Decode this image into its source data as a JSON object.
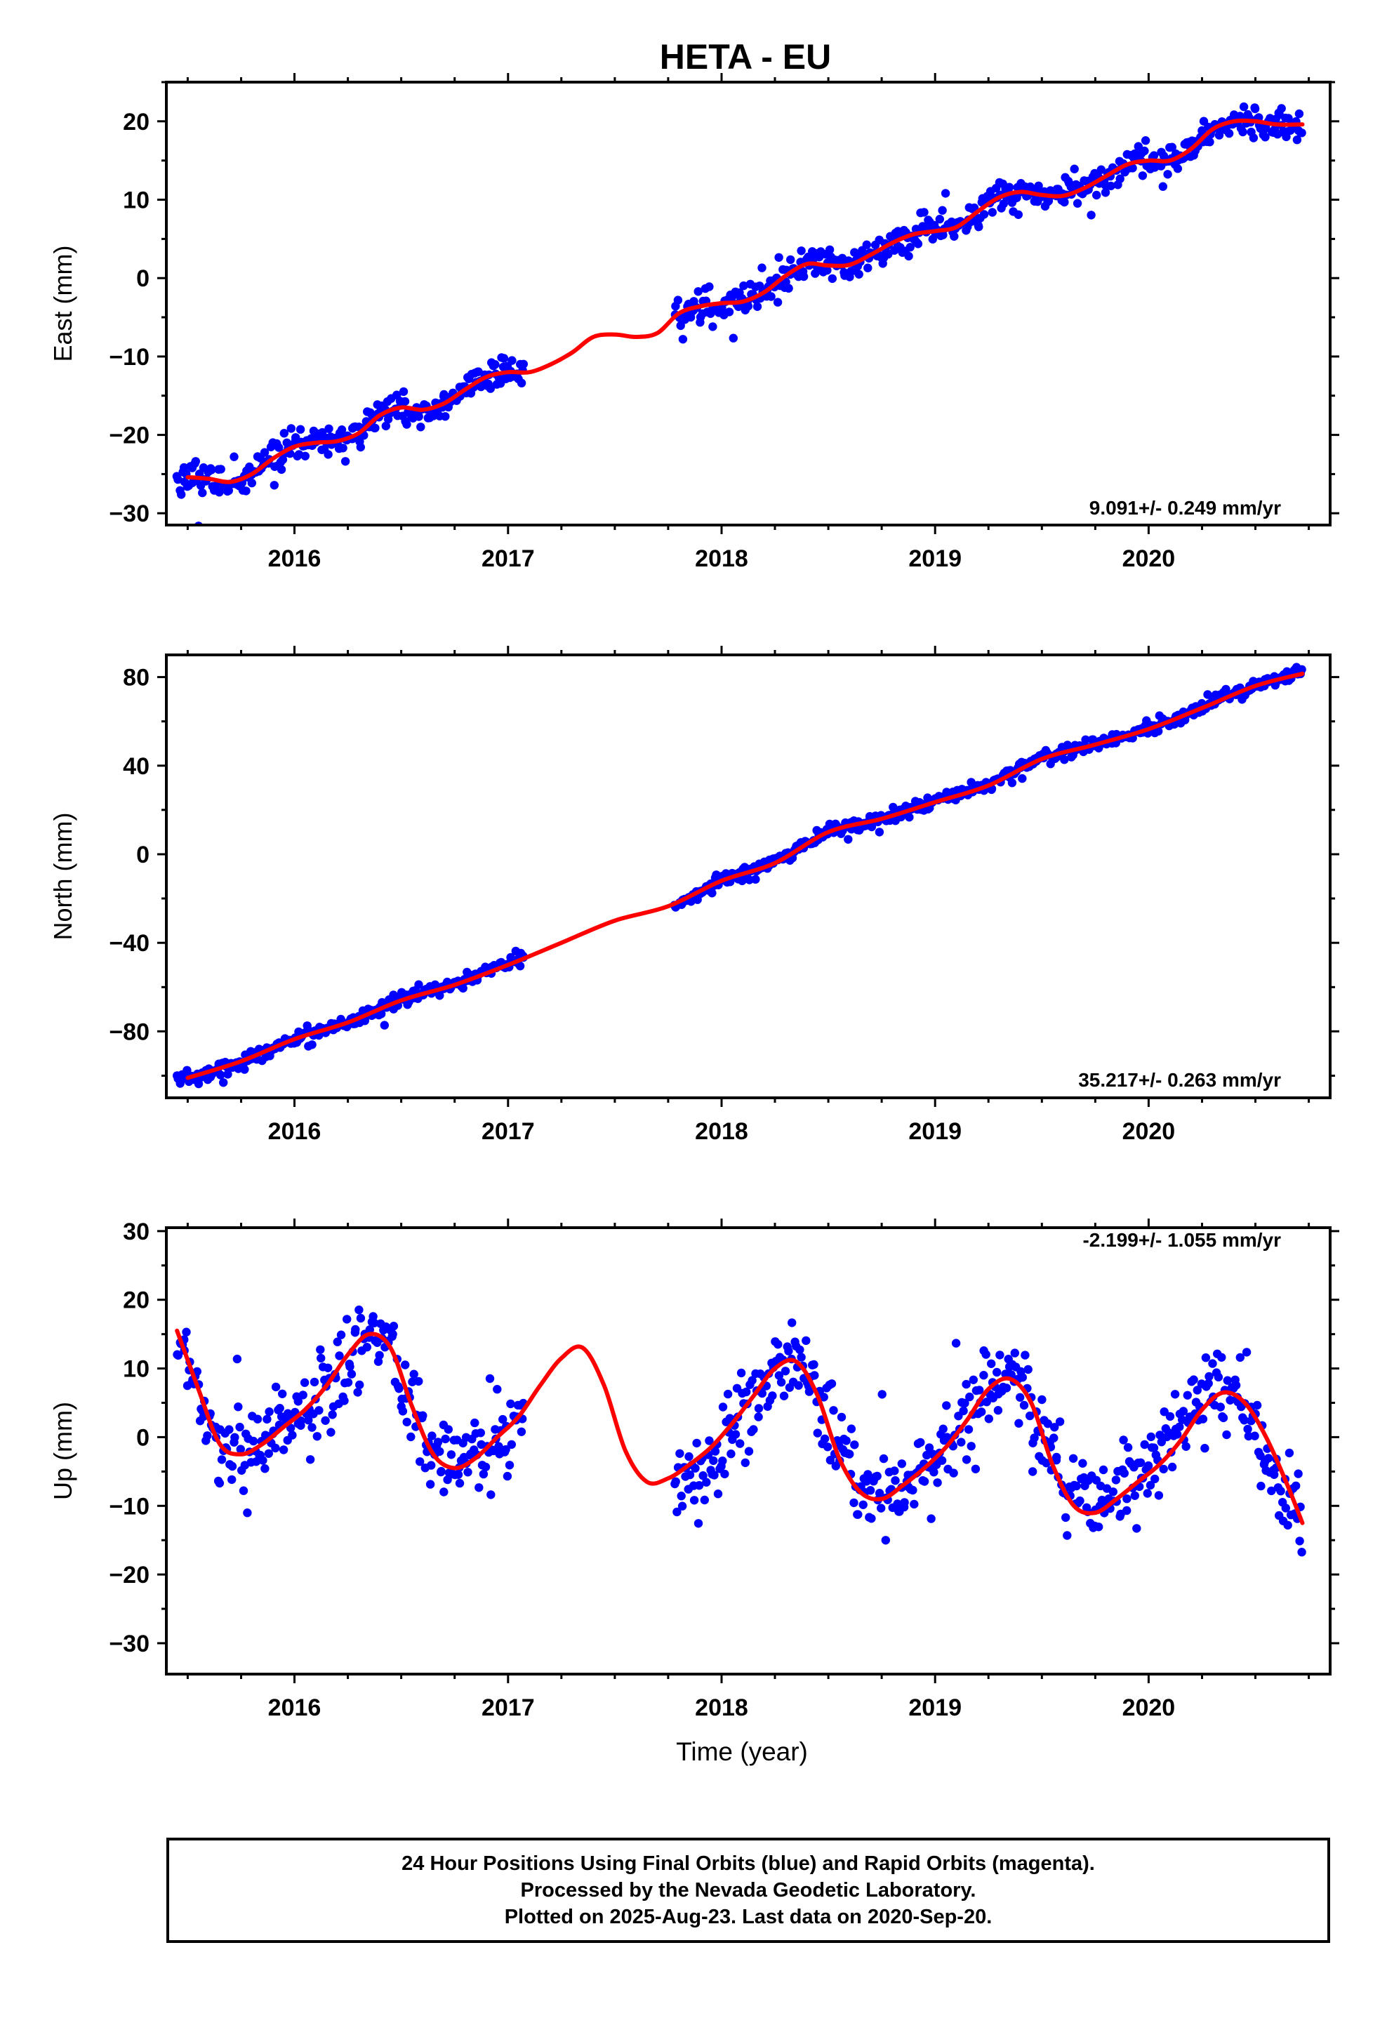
{
  "title": "HETA - EU",
  "colors": {
    "final_orbits": "#0000ff",
    "fit_curve": "#ff0000",
    "frame": "#000000"
  },
  "chart_data": [
    {
      "type": "scatter",
      "ylabel": "East (mm)",
      "xlabel": "",
      "rate_label": "9.091+/- 0.249 mm/yr",
      "xlim": [
        2015.4,
        2020.85
      ],
      "ylim": [
        -31.5,
        25
      ],
      "x_ticks": [
        2016,
        2017,
        2018,
        2019,
        2020
      ],
      "x_tick_labels": [
        "2016",
        "2017",
        "2018",
        "2019",
        "2020"
      ],
      "y_ticks": [
        20,
        10,
        0,
        -10,
        -20,
        -30
      ],
      "y_tick_labels": [
        "20",
        "10",
        "0",
        "−10",
        "−20",
        "−30"
      ],
      "grid": false,
      "data_gap": [
        2017.08,
        2017.78
      ],
      "series": [
        {
          "kind": "points",
          "color": "#0000ff",
          "segments": [
            [
              2015.45,
              2017.08
            ],
            [
              2017.78,
              2020.72
            ]
          ],
          "x": [
            2015.5,
            2015.6,
            2015.7,
            2015.8,
            2015.9,
            2016.0,
            2016.1,
            2016.2,
            2016.3,
            2016.4,
            2016.5,
            2016.6,
            2016.7,
            2016.8,
            2016.9,
            2017.0,
            2017.08,
            2017.8,
            2017.9,
            2018.0,
            2018.1,
            2018.2,
            2018.3,
            2018.4,
            2018.5,
            2018.6,
            2018.7,
            2018.8,
            2018.9,
            2019.0,
            2019.1,
            2019.2,
            2019.3,
            2019.4,
            2019.5,
            2019.6,
            2019.7,
            2019.8,
            2019.9,
            2020.0,
            2020.1,
            2020.2,
            2020.3,
            2020.4,
            2020.5,
            2020.6,
            2020.72
          ],
          "y": [
            -25.5,
            -25.8,
            -26.5,
            -25.0,
            -23.0,
            -21.5,
            -20.8,
            -21.0,
            -19.8,
            -17.5,
            -16.5,
            -17.0,
            -16.0,
            -14.0,
            -12.5,
            -12.0,
            -11.8,
            -4.5,
            -3.5,
            -3.2,
            -3.0,
            -1.5,
            0.5,
            2.0,
            1.5,
            1.5,
            3.0,
            4.5,
            5.5,
            6.0,
            6.5,
            8.5,
            10.5,
            11.0,
            10.5,
            10.5,
            11.5,
            13.0,
            14.5,
            15.0,
            15.0,
            16.5,
            19.0,
            20.0,
            20.0,
            19.5,
            19.5
          ],
          "spread": 1.8
        },
        {
          "kind": "fit",
          "color": "#ff0000",
          "x": [
            2015.5,
            2015.6,
            2015.7,
            2015.8,
            2015.9,
            2016.0,
            2016.1,
            2016.2,
            2016.3,
            2016.4,
            2016.5,
            2016.6,
            2016.7,
            2016.8,
            2016.9,
            2017.0,
            2017.1,
            2017.2,
            2017.3,
            2017.4,
            2017.5,
            2017.6,
            2017.7,
            2017.8,
            2017.9,
            2018.0,
            2018.1,
            2018.2,
            2018.3,
            2018.4,
            2018.5,
            2018.6,
            2018.7,
            2018.8,
            2018.9,
            2019.0,
            2019.1,
            2019.2,
            2019.3,
            2019.4,
            2019.5,
            2019.6,
            2019.7,
            2019.8,
            2019.9,
            2020.0,
            2020.1,
            2020.2,
            2020.3,
            2020.4,
            2020.5,
            2020.6,
            2020.72
          ],
          "y": [
            -25.4,
            -25.6,
            -26.0,
            -25.0,
            -23.0,
            -21.5,
            -21.0,
            -20.8,
            -19.8,
            -17.5,
            -16.5,
            -16.8,
            -16.0,
            -14.2,
            -12.6,
            -12.0,
            -12.0,
            -11.0,
            -9.5,
            -7.5,
            -7.2,
            -7.5,
            -7.0,
            -4.5,
            -3.6,
            -3.2,
            -3.0,
            -1.8,
            0.3,
            1.8,
            1.6,
            1.7,
            3.0,
            4.5,
            5.6,
            6.0,
            6.5,
            8.5,
            10.3,
            11.0,
            10.6,
            10.5,
            11.5,
            13.0,
            14.5,
            15.0,
            15.0,
            16.5,
            19.0,
            20.0,
            20.0,
            19.6,
            19.6
          ]
        }
      ]
    },
    {
      "type": "scatter",
      "ylabel": "North (mm)",
      "xlabel": "",
      "rate_label": "35.217+/- 0.263 mm/yr",
      "xlim": [
        2015.4,
        2020.85
      ],
      "ylim": [
        -110,
        90
      ],
      "x_ticks": [
        2016,
        2017,
        2018,
        2019,
        2020
      ],
      "x_tick_labels": [
        "2016",
        "2017",
        "2018",
        "2019",
        "2020"
      ],
      "y_ticks": [
        80,
        40,
        0,
        -40,
        -80
      ],
      "y_tick_labels": [
        "80",
        "40",
        "0",
        "−40",
        "−80"
      ],
      "grid": false,
      "data_gap": [
        2017.08,
        2017.78
      ],
      "series": [
        {
          "kind": "points",
          "color": "#0000ff",
          "segments": [
            [
              2015.45,
              2017.08
            ],
            [
              2017.78,
              2020.72
            ]
          ],
          "x": [
            2015.5,
            2015.75,
            2016.0,
            2016.25,
            2016.5,
            2016.75,
            2017.0,
            2017.08,
            2017.8,
            2018.0,
            2018.25,
            2018.5,
            2018.75,
            2019.0,
            2019.25,
            2019.5,
            2019.75,
            2020.0,
            2020.25,
            2020.5,
            2020.72
          ],
          "y": [
            -101.5,
            -94.0,
            -83.5,
            -76.0,
            -66.0,
            -58.5,
            -49.5,
            -46.0,
            -22.5,
            -12.0,
            -3.5,
            10.5,
            16.0,
            23.5,
            31.0,
            43.5,
            49.5,
            56.5,
            66.5,
            76.0,
            81.5
          ],
          "spread": 2.8
        },
        {
          "kind": "fit",
          "color": "#ff0000",
          "x": [
            2015.5,
            2015.75,
            2016.0,
            2016.25,
            2016.5,
            2016.75,
            2017.0,
            2017.25,
            2017.5,
            2017.75,
            2018.0,
            2018.25,
            2018.5,
            2018.75,
            2019.0,
            2019.25,
            2019.5,
            2019.75,
            2020.0,
            2020.25,
            2020.5,
            2020.72
          ],
          "y": [
            -101.0,
            -93.5,
            -83.5,
            -76.0,
            -66.0,
            -59.0,
            -50.0,
            -40.0,
            -30.0,
            -23.5,
            -12.0,
            -4.0,
            10.0,
            16.0,
            23.5,
            31.0,
            43.0,
            49.5,
            56.5,
            66.0,
            76.0,
            81.5
          ]
        }
      ]
    },
    {
      "type": "scatter",
      "ylabel": "Up (mm)",
      "xlabel": "Time (year)",
      "rate_label": "-2.199+/- 1.055 mm/yr",
      "xlim": [
        2015.4,
        2020.85
      ],
      "ylim": [
        -34.5,
        30.5
      ],
      "x_ticks": [
        2016,
        2017,
        2018,
        2019,
        2020
      ],
      "x_tick_labels": [
        "2016",
        "2017",
        "2018",
        "2019",
        "2020"
      ],
      "y_ticks": [
        30,
        20,
        10,
        0,
        -10,
        -20,
        -30
      ],
      "y_tick_labels": [
        "30",
        "20",
        "10",
        "0",
        "−10",
        "−20",
        "−30"
      ],
      "grid": false,
      "data_gap": [
        2017.08,
        2017.78
      ],
      "series": [
        {
          "kind": "points",
          "color": "#0000ff",
          "segments": [
            [
              2015.45,
              2017.08
            ],
            [
              2017.78,
              2020.72
            ]
          ],
          "x": [
            2015.45,
            2015.55,
            2015.65,
            2015.75,
            2015.85,
            2015.95,
            2016.05,
            2016.15,
            2016.25,
            2016.35,
            2016.45,
            2016.55,
            2016.65,
            2016.75,
            2016.85,
            2016.95,
            2017.08,
            2017.78,
            2017.9,
            2018.0,
            2018.1,
            2018.2,
            2018.3,
            2018.4,
            2018.5,
            2018.6,
            2018.7,
            2018.8,
            2018.9,
            2019.0,
            2019.1,
            2019.2,
            2019.3,
            2019.4,
            2019.5,
            2019.6,
            2019.7,
            2019.8,
            2019.9,
            2020.0,
            2020.1,
            2020.2,
            2020.3,
            2020.4,
            2020.5,
            2020.6,
            2020.72
          ],
          "y": [
            15.5,
            7.0,
            -1.0,
            -2.5,
            -1.0,
            1.5,
            4.0,
            7.0,
            11.5,
            15.0,
            13.0,
            4.0,
            -2.5,
            -4.5,
            -2.5,
            0.5,
            2.5,
            -6.5,
            -5.0,
            -1.0,
            3.0,
            7.0,
            10.5,
            10.5,
            3.0,
            -5.0,
            -8.5,
            -8.5,
            -6.5,
            -3.5,
            0.5,
            4.5,
            8.0,
            8.5,
            1.0,
            -7.0,
            -10.5,
            -10.0,
            -7.5,
            -4.5,
            -1.0,
            3.0,
            6.5,
            6.5,
            2.0,
            -6.0,
            -12.5
          ],
          "spread": 5.5
        },
        {
          "kind": "fit",
          "color": "#ff0000",
          "x": [
            2015.45,
            2015.55,
            2015.65,
            2015.75,
            2015.85,
            2015.95,
            2016.05,
            2016.15,
            2016.25,
            2016.35,
            2016.45,
            2016.55,
            2016.65,
            2016.75,
            2016.85,
            2016.95,
            2017.05,
            2017.15,
            2017.25,
            2017.35,
            2017.45,
            2017.55,
            2017.65,
            2017.75,
            2017.85,
            2017.95,
            2018.05,
            2018.15,
            2018.25,
            2018.35,
            2018.45,
            2018.55,
            2018.65,
            2018.75,
            2018.85,
            2018.95,
            2019.05,
            2019.15,
            2019.25,
            2019.35,
            2019.45,
            2019.55,
            2019.65,
            2019.75,
            2019.85,
            2019.95,
            2020.05,
            2020.15,
            2020.25,
            2020.35,
            2020.45,
            2020.55,
            2020.65,
            2020.72
          ],
          "y": [
            15.5,
            7.0,
            -1.0,
            -2.5,
            -1.0,
            1.5,
            4.0,
            7.5,
            12.0,
            15.0,
            13.0,
            4.5,
            -2.5,
            -4.5,
            -3.0,
            0.0,
            3.0,
            7.5,
            11.5,
            13.0,
            7.5,
            -2.0,
            -6.5,
            -6.0,
            -4.0,
            -1.5,
            2.0,
            6.0,
            10.0,
            11.0,
            6.0,
            -3.0,
            -8.0,
            -9.0,
            -7.0,
            -4.5,
            -1.5,
            2.5,
            7.0,
            8.5,
            5.0,
            -4.0,
            -10.0,
            -11.0,
            -9.0,
            -6.5,
            -4.0,
            -0.5,
            4.0,
            6.5,
            5.0,
            0.0,
            -7.0,
            -12.5
          ]
        }
      ]
    }
  ],
  "caption": {
    "line1": "24 Hour Positions Using Final Orbits (blue) and Rapid Orbits (magenta).",
    "line2": "Processed by the Nevada Geodetic Laboratory.",
    "line3": "Plotted on 2025-Aug-23. Last data on 2020-Sep-20."
  }
}
